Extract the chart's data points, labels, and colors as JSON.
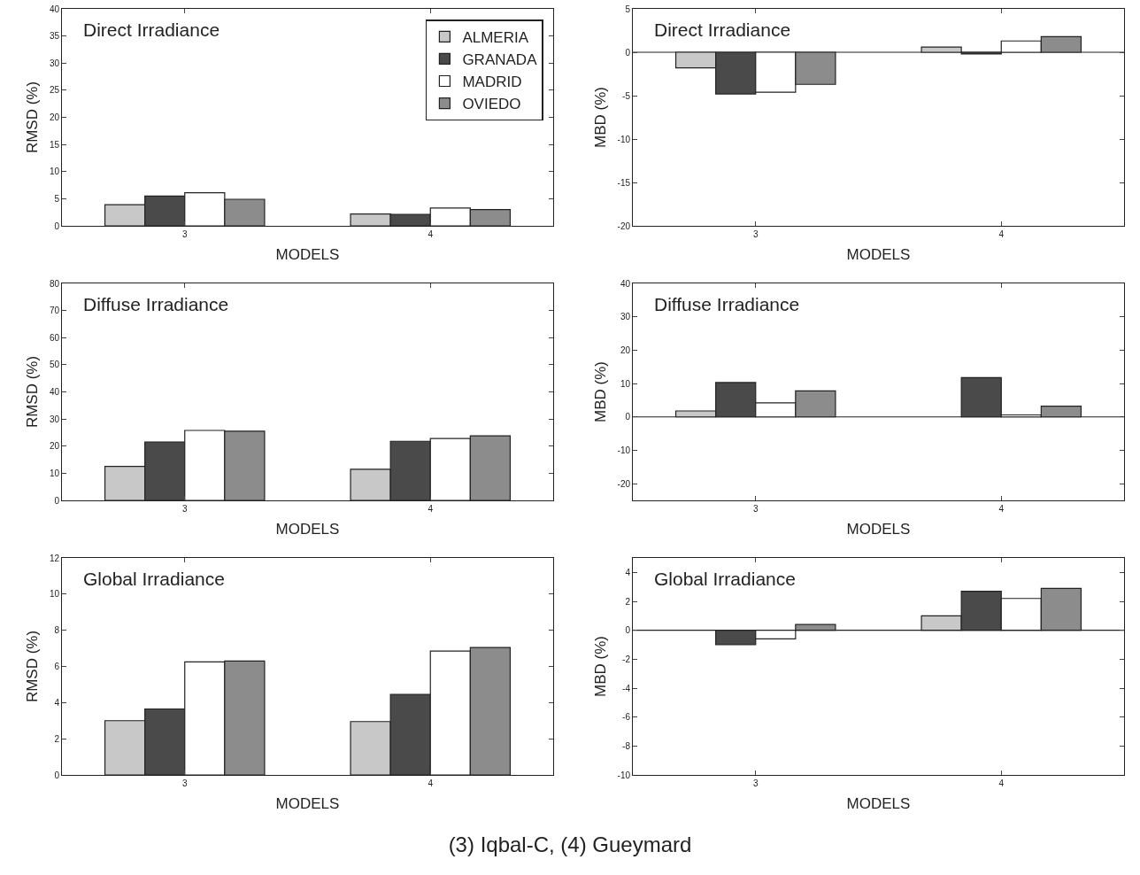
{
  "chart_data": [
    {
      "type": "bar",
      "title": "Direct Irradiance",
      "xlabel": "MODELS",
      "ylabel": "RMSD (%)",
      "categories": [
        "3",
        "4"
      ],
      "ylim": [
        0,
        40
      ],
      "yticks": [
        0,
        5,
        10,
        15,
        20,
        25,
        30,
        35,
        40
      ],
      "grid": false,
      "legend": "top right",
      "series": [
        {
          "name": "ALMERIA",
          "color": "#c8c8c8",
          "values": [
            3.9,
            2.2
          ]
        },
        {
          "name": "GRANADA",
          "color": "#4a4a4a",
          "values": [
            5.5,
            2.1
          ]
        },
        {
          "name": "MADRID",
          "color": "#ffffff",
          "values": [
            6.1,
            3.3
          ]
        },
        {
          "name": "OVIEDO",
          "color": "#8c8c8c",
          "values": [
            4.9,
            3.0
          ]
        }
      ]
    },
    {
      "type": "bar",
      "title": "Direct Irradiance",
      "xlabel": "MODELS",
      "ylabel": "MBD (%)",
      "categories": [
        "3",
        "4"
      ],
      "ylim": [
        -20,
        5
      ],
      "yticks": [
        -20,
        -15,
        -10,
        -5,
        0,
        5
      ],
      "grid": false,
      "ref_lines": [
        {
          "axis": "y",
          "value": 0
        }
      ],
      "series": [
        {
          "color": "#c8c8c8",
          "values": [
            -1.8,
            0.6
          ]
        },
        {
          "color": "#4a4a4a",
          "values": [
            -4.8,
            -0.2
          ]
        },
        {
          "color": "#ffffff",
          "values": [
            -4.6,
            1.3
          ]
        },
        {
          "color": "#8c8c8c",
          "values": [
            -3.7,
            1.8
          ]
        }
      ]
    },
    {
      "type": "bar",
      "title": "Diffuse Irradiance",
      "xlabel": "MODELS",
      "ylabel": "RMSD (%)",
      "categories": [
        "3",
        "4"
      ],
      "ylim": [
        0,
        80
      ],
      "yticks": [
        0,
        10,
        20,
        30,
        40,
        50,
        60,
        70,
        80
      ],
      "grid": false,
      "series": [
        {
          "color": "#c8c8c8",
          "values": [
            12.5,
            11.5
          ]
        },
        {
          "color": "#4a4a4a",
          "values": [
            21.5,
            21.8
          ]
        },
        {
          "color": "#ffffff",
          "values": [
            25.8,
            22.8
          ]
        },
        {
          "color": "#8c8c8c",
          "values": [
            25.5,
            23.8
          ]
        }
      ]
    },
    {
      "type": "bar",
      "title": "Diffuse Irradiance",
      "xlabel": "MODELS",
      "ylabel": "MBD (%)",
      "categories": [
        "3",
        "4"
      ],
      "ylim": [
        -25,
        40
      ],
      "yticks": [
        -20,
        -10,
        0,
        10,
        20,
        30,
        40
      ],
      "grid": false,
      "ref_lines": [
        {
          "axis": "y",
          "value": 0
        }
      ],
      "series": [
        {
          "color": "#c8c8c8",
          "values": [
            1.8,
            null
          ]
        },
        {
          "color": "#4a4a4a",
          "values": [
            10.3,
            11.8
          ]
        },
        {
          "color": "#ffffff",
          "values": [
            4.2,
            0.6
          ]
        },
        {
          "color": "#8c8c8c",
          "values": [
            7.8,
            3.2
          ]
        }
      ]
    },
    {
      "type": "bar",
      "title": "Global Irradiance",
      "xlabel": "MODELS",
      "ylabel": "RMSD (%)",
      "categories": [
        "3",
        "4"
      ],
      "ylim": [
        0,
        12
      ],
      "yticks": [
        0,
        2,
        4,
        6,
        8,
        10,
        12
      ],
      "grid": false,
      "annotations": [
        "(3) Iqbal-C, (4) Gueymard"
      ],
      "series": [
        {
          "color": "#c8c8c8",
          "values": [
            3.0,
            2.95
          ]
        },
        {
          "color": "#4a4a4a",
          "values": [
            3.65,
            4.45
          ]
        },
        {
          "color": "#ffffff",
          "values": [
            6.25,
            6.85
          ]
        },
        {
          "color": "#8c8c8c",
          "values": [
            6.3,
            7.05
          ]
        }
      ]
    },
    {
      "type": "bar",
      "title": "Global Irradiance",
      "xlabel": "MODELS",
      "ylabel": "MBD (%)",
      "categories": [
        "3",
        "4"
      ],
      "ylim": [
        -10,
        5
      ],
      "yticks": [
        -10,
        -8,
        -6,
        -4,
        -2,
        0,
        2,
        4
      ],
      "grid": false,
      "ref_lines": [
        {
          "axis": "y",
          "value": 0
        }
      ],
      "series": [
        {
          "color": "#c8c8c8",
          "values": [
            null,
            1.0
          ]
        },
        {
          "color": "#4a4a4a",
          "values": [
            -1.0,
            2.7
          ]
        },
        {
          "color": "#ffffff",
          "values": [
            -0.6,
            2.2
          ]
        },
        {
          "color": "#8c8c8c",
          "values": [
            0.4,
            2.9
          ]
        }
      ]
    }
  ]
}
